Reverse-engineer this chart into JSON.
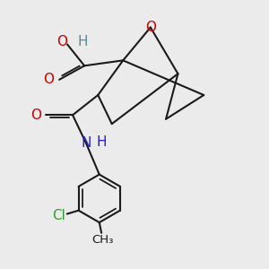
{
  "background_color": "#EBEBEB",
  "figsize": [
    3.0,
    3.0
  ],
  "dpi": 100,
  "atom_colors": {
    "O": "#cc0000",
    "H": "#5a8a8a",
    "N": "#2222cc",
    "Cl": "#2ea02e",
    "C": "#1a1a1a"
  }
}
